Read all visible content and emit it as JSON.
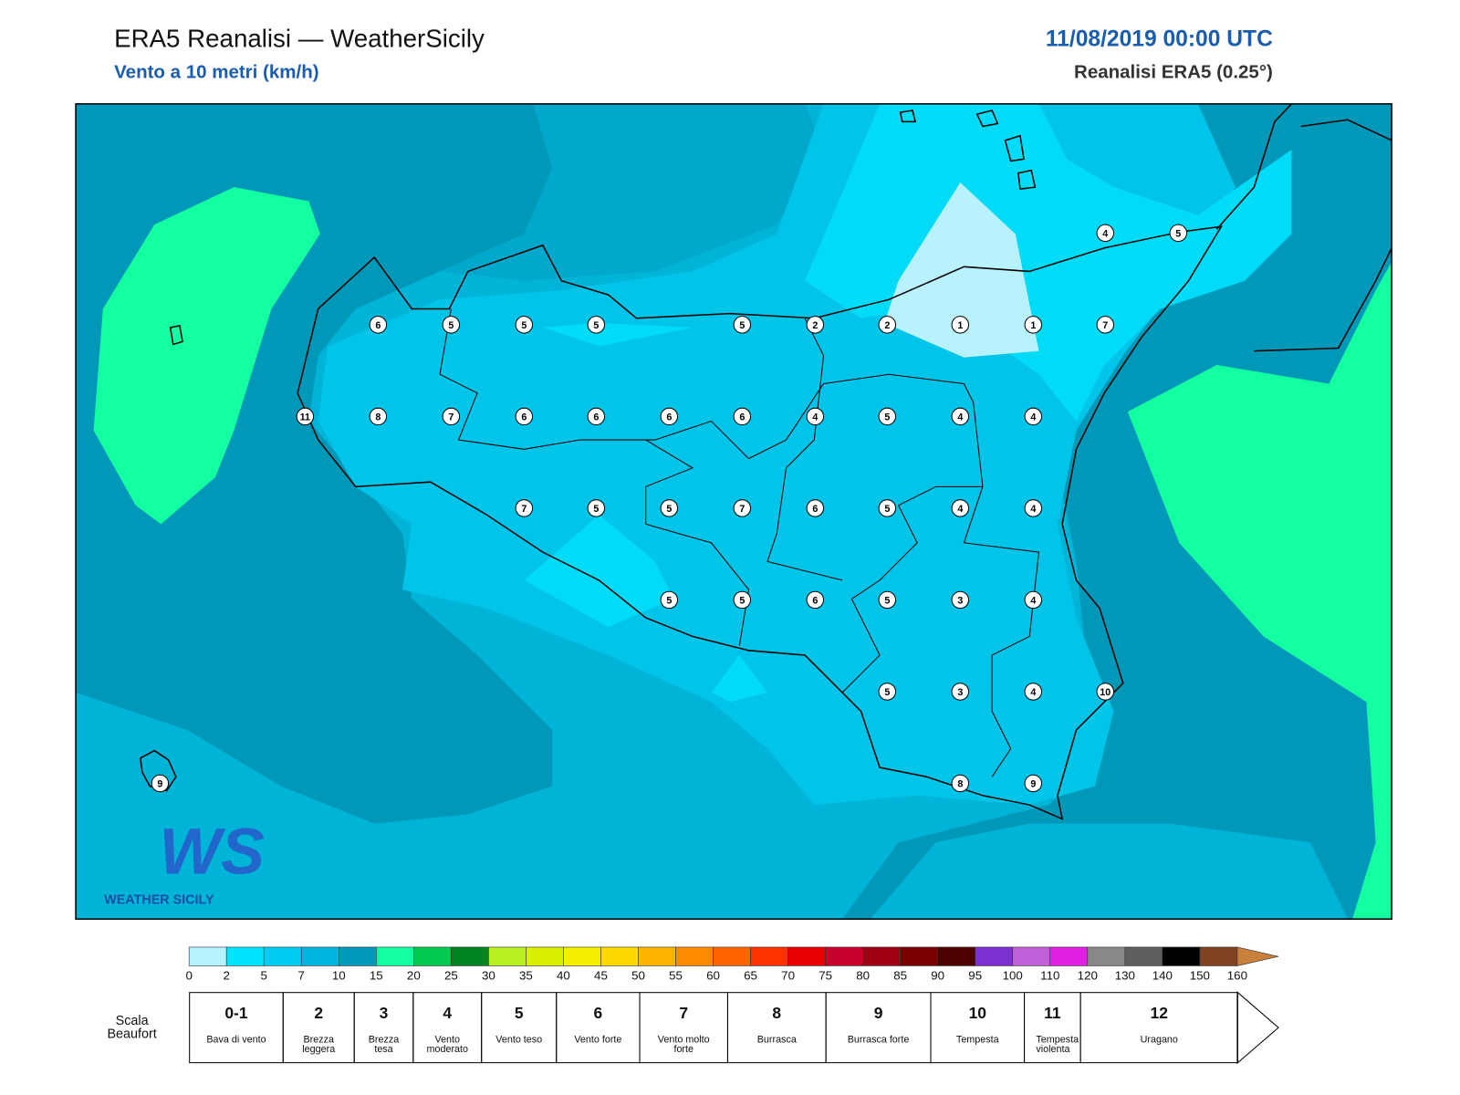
{
  "header": {
    "title": "ERA5 Reanalisi — WeatherSicily",
    "subtitle": "Vento a 10 metri (km/h)",
    "date": "11/08/2019 00:00 UTC",
    "model": "Reanalisi ERA5 (0.25°)"
  },
  "map": {
    "stations": [
      4,
      5,
      6,
      5,
      5,
      5,
      5,
      2,
      2,
      1,
      1,
      7,
      11,
      8,
      7,
      6,
      6,
      6,
      6,
      4,
      5,
      4,
      4,
      7,
      5,
      5,
      7,
      6,
      5,
      4,
      4,
      5,
      5,
      6,
      5,
      3,
      4,
      5,
      3,
      4,
      10,
      9,
      8,
      9
    ]
  },
  "logo": {
    "mark": "WS",
    "name": "WEATHER SICILY"
  },
  "colorbar": {
    "ticks": [
      0,
      2,
      5,
      7,
      10,
      15,
      20,
      25,
      30,
      35,
      40,
      45,
      50,
      55,
      60,
      65,
      70,
      75,
      80,
      85,
      90,
      95,
      100,
      110,
      120,
      130,
      140,
      150,
      160
    ],
    "colors": [
      "#b4f2ff",
      "#00e2ff",
      "#00ccf2",
      "#00b6de",
      "#0099b9",
      "#12ffa2",
      "#00c850",
      "#008422",
      "#b8f020",
      "#d8f000",
      "#f4f000",
      "#ffd800",
      "#ffb400",
      "#ff8c00",
      "#ff6400",
      "#ff3200",
      "#e80000",
      "#c8002c",
      "#a00014",
      "#780000",
      "#4c0000",
      "#7c30d0",
      "#c060d8",
      "#e020e0",
      "#888888",
      "#5e5e5e",
      "#000000",
      "#804222",
      "#c8803c"
    ]
  },
  "beaufort": {
    "title": "Scala Beaufort",
    "entries": [
      {
        "force": "0-1",
        "label": "Bava di vento"
      },
      {
        "force": "2",
        "label": "Brezza leggera"
      },
      {
        "force": "3",
        "label": "Brezza tesa"
      },
      {
        "force": "4",
        "label": "Vento moderato"
      },
      {
        "force": "5",
        "label": "Vento teso"
      },
      {
        "force": "6",
        "label": "Vento forte"
      },
      {
        "force": "7",
        "label": "Vento molto forte"
      },
      {
        "force": "8",
        "label": "Burrasca"
      },
      {
        "force": "9",
        "label": "Burrasca forte"
      },
      {
        "force": "10",
        "label": "Tempesta"
      },
      {
        "force": "11",
        "label": "Tempesta violenta"
      },
      {
        "force": "12",
        "label": "Uragano"
      }
    ]
  }
}
